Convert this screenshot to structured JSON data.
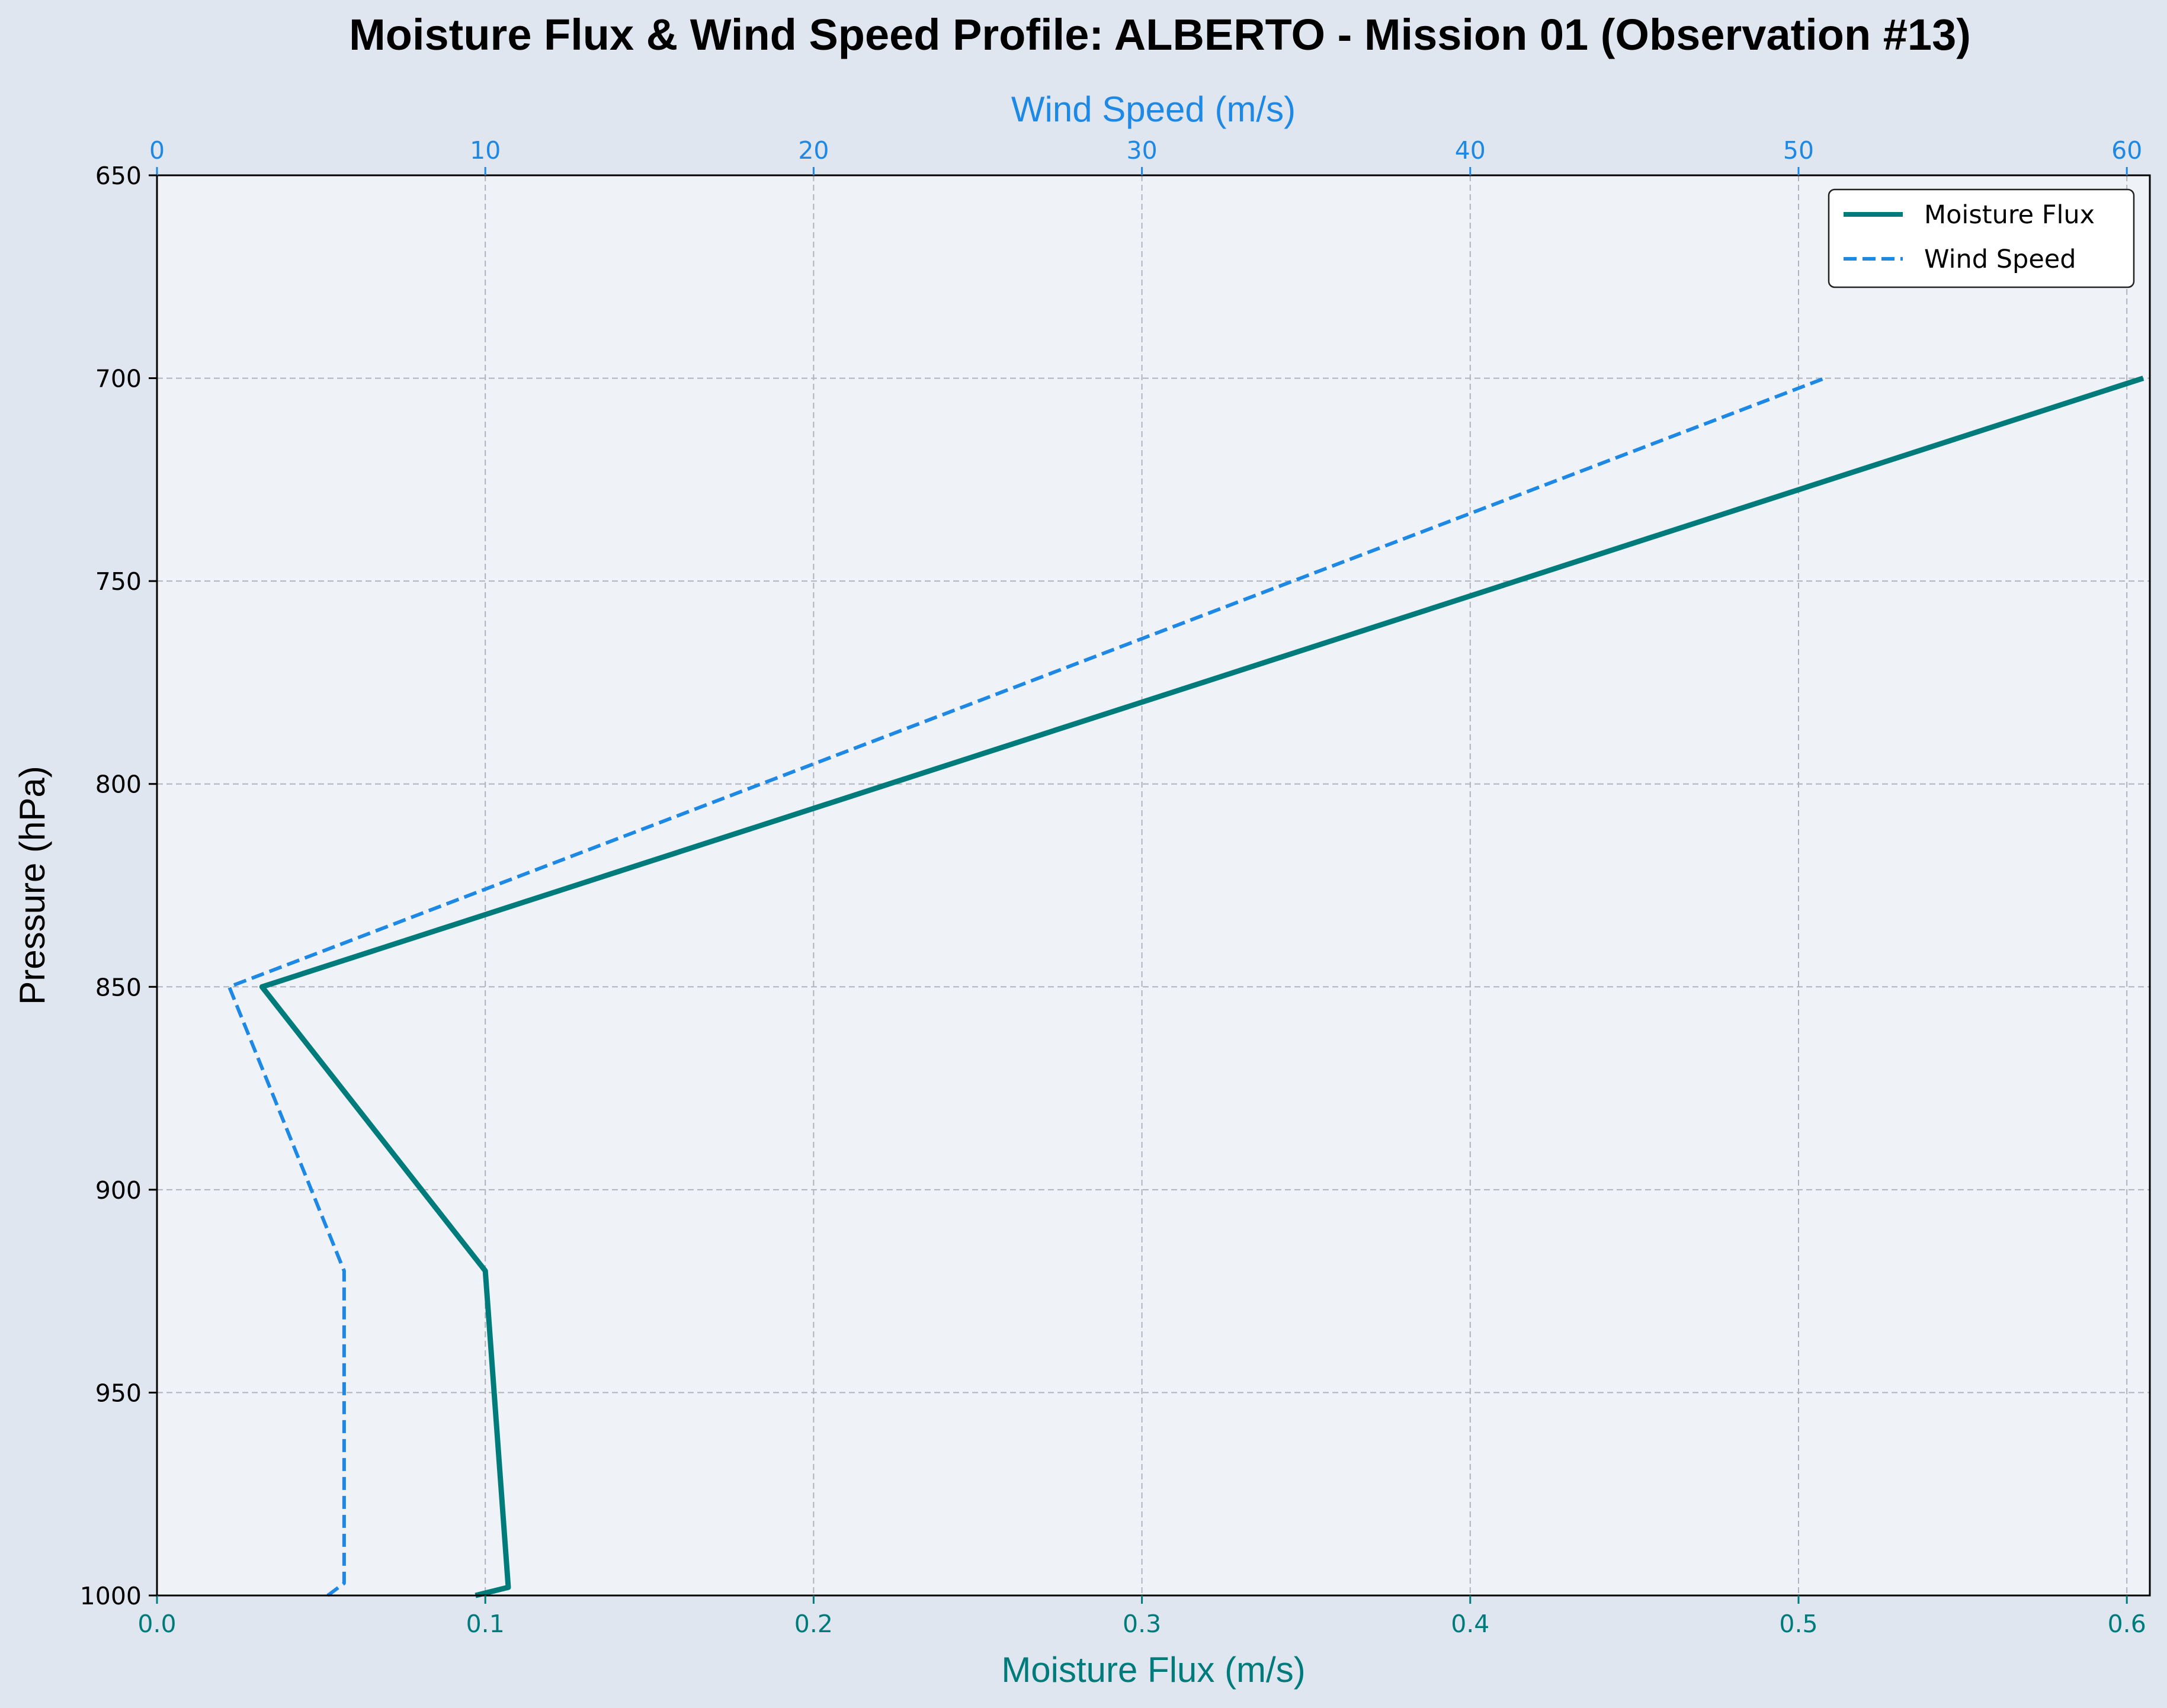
{
  "chart_data": {
    "type": "line",
    "title": "Moisture Flux & Wind Speed Profile: ALBERTO - Mission 01 (Observation #13)",
    "xlabel_bottom": "Moisture Flux (m/s)",
    "xlabel_top": "Wind Speed (m/s)",
    "ylabel": "Pressure (hPa)",
    "xlim_bottom": [
      0.0,
      0.607
    ],
    "xlim_top": [
      0,
      60.7
    ],
    "ylim": [
      1000,
      650
    ],
    "y_inverted": true,
    "xticks_bottom": [
      "0.0",
      "0.1",
      "0.2",
      "0.3",
      "0.4",
      "0.5",
      "0.6"
    ],
    "xticks_top": [
      "0",
      "10",
      "20",
      "30",
      "40",
      "50",
      "60"
    ],
    "yticks": [
      "650",
      "700",
      "750",
      "800",
      "850",
      "900",
      "950",
      "1000"
    ],
    "grid": true,
    "legend_position": "top-right",
    "series": [
      {
        "name": "Moisture Flux",
        "axis": "bottom",
        "color": "#007b7b",
        "style": "solid",
        "points": [
          [
            0.097,
            1000
          ],
          [
            0.107,
            998
          ],
          [
            0.1,
            920
          ],
          [
            0.032,
            850
          ],
          [
            0.605,
            700
          ]
        ]
      },
      {
        "name": "Wind Speed",
        "axis": "top",
        "color": "#1e88e5",
        "style": "dashed",
        "points": [
          [
            5.2,
            1000
          ],
          [
            5.7,
            997
          ],
          [
            5.7,
            920
          ],
          [
            2.2,
            850
          ],
          [
            50.8,
            700
          ]
        ]
      }
    ]
  },
  "colors": {
    "page_background": "#e0e6f0",
    "plot_background": "#eff3f8",
    "moisture_axis": "#007b7b",
    "wind_axis": "#1e88e5",
    "grid": "#b0b4ba",
    "frame": "#000000"
  }
}
